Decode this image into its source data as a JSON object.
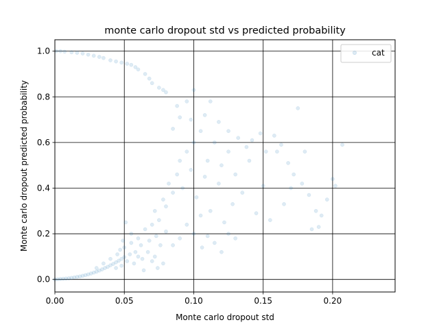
{
  "chart_data": {
    "type": "scatter",
    "title": "monte carlo dropout std vs predicted probability",
    "xlabel": "Monte carlo dropout std",
    "ylabel": "Monte carlo dropout predicted probability",
    "xlim": [
      0.0,
      0.245
    ],
    "ylim": [
      -0.055,
      1.05
    ],
    "xticks": [
      0.0,
      0.05,
      0.1,
      0.15,
      0.2
    ],
    "xtick_labels": [
      "0.00",
      "0.05",
      "0.10",
      "0.15",
      "0.20"
    ],
    "yticks": [
      0.0,
      0.2,
      0.4,
      0.6,
      0.8,
      1.0
    ],
    "ytick_labels": [
      "0.0",
      "0.2",
      "0.4",
      "0.6",
      "0.8",
      "1.0"
    ],
    "grid": true,
    "legend_position": "top-right",
    "series": [
      {
        "name": "cat",
        "color": "#1f77b4",
        "marker_alpha": 0.15,
        "points": [
          [
            0.0,
            0.0
          ],
          [
            0.002,
            0.001
          ],
          [
            0.004,
            0.002
          ],
          [
            0.006,
            0.003
          ],
          [
            0.008,
            0.004
          ],
          [
            0.01,
            0.005
          ],
          [
            0.012,
            0.007
          ],
          [
            0.014,
            0.009
          ],
          [
            0.016,
            0.011
          ],
          [
            0.018,
            0.013
          ],
          [
            0.02,
            0.016
          ],
          [
            0.022,
            0.019
          ],
          [
            0.024,
            0.022
          ],
          [
            0.026,
            0.026
          ],
          [
            0.028,
            0.03
          ],
          [
            0.03,
            0.034
          ],
          [
            0.032,
            0.039
          ],
          [
            0.034,
            0.044
          ],
          [
            0.036,
            0.05
          ],
          [
            0.038,
            0.055
          ],
          [
            0.04,
            0.062
          ],
          [
            0.042,
            0.068
          ],
          [
            0.044,
            0.075
          ],
          [
            0.046,
            0.082
          ],
          [
            0.048,
            0.09
          ],
          [
            0.05,
            0.098
          ],
          [
            0.03,
            0.05
          ],
          [
            0.035,
            0.07
          ],
          [
            0.04,
            0.09
          ],
          [
            0.045,
            0.11
          ],
          [
            0.05,
            0.14
          ],
          [
            0.055,
            0.16
          ],
          [
            0.06,
            0.18
          ],
          [
            0.048,
            0.06
          ],
          [
            0.052,
            0.08
          ],
          [
            0.044,
            0.05
          ],
          [
            0.047,
            0.13
          ],
          [
            0.049,
            0.17
          ],
          [
            0.051,
            0.25
          ],
          [
            0.055,
            0.2
          ],
          [
            0.058,
            0.12
          ],
          [
            0.062,
            0.15
          ],
          [
            0.065,
            0.22
          ],
          [
            0.068,
            0.17
          ],
          [
            0.07,
            0.24
          ],
          [
            0.072,
            0.3
          ],
          [
            0.075,
            0.26
          ],
          [
            0.078,
            0.35
          ],
          [
            0.08,
            0.32
          ],
          [
            0.082,
            0.42
          ],
          [
            0.085,
            0.38
          ],
          [
            0.088,
            0.46
          ],
          [
            0.09,
            0.52
          ],
          [
            0.092,
            0.4
          ],
          [
            0.095,
            0.56
          ],
          [
            0.098,
            0.48
          ],
          [
            0.1,
            0.6
          ],
          [
            0.102,
            0.36
          ],
          [
            0.105,
            0.65
          ],
          [
            0.108,
            0.45
          ],
          [
            0.11,
            0.52
          ],
          [
            0.112,
            0.3
          ],
          [
            0.115,
            0.6
          ],
          [
            0.118,
            0.42
          ],
          [
            0.12,
            0.5
          ],
          [
            0.122,
            0.25
          ],
          [
            0.125,
            0.56
          ],
          [
            0.128,
            0.33
          ],
          [
            0.13,
            0.46
          ],
          [
            0.135,
            0.38
          ],
          [
            0.14,
            0.52
          ],
          [
            0.145,
            0.29
          ],
          [
            0.15,
            0.41
          ],
          [
            0.155,
            0.26
          ],
          [
            0.16,
            0.56
          ],
          [
            0.165,
            0.33
          ],
          [
            0.17,
            0.4
          ],
          [
            0.175,
            0.75
          ],
          [
            0.18,
            0.56
          ],
          [
            0.185,
            0.22
          ],
          [
            0.19,
            0.23
          ],
          [
            0.2,
            0.44
          ],
          [
            0.207,
            0.59
          ],
          [
            0.1,
            0.2
          ],
          [
            0.095,
            0.24
          ],
          [
            0.105,
            0.28
          ],
          [
            0.09,
            0.18
          ],
          [
            0.085,
            0.15
          ],
          [
            0.08,
            0.21
          ],
          [
            0.076,
            0.15
          ],
          [
            0.073,
            0.19
          ],
          [
            0.067,
            0.12
          ],
          [
            0.063,
            0.09
          ],
          [
            0.06,
            0.1
          ],
          [
            0.057,
            0.07
          ],
          [
            0.054,
            0.11
          ],
          [
            0.1,
            0.83
          ],
          [
            0.095,
            0.78
          ],
          [
            0.09,
            0.71
          ],
          [
            0.085,
            0.66
          ],
          [
            0.08,
            0.82
          ],
          [
            0.075,
            0.84
          ],
          [
            0.07,
            0.86
          ],
          [
            0.065,
            0.9
          ],
          [
            0.06,
            0.92
          ],
          [
            0.055,
            0.94
          ],
          [
            0.048,
            0.95
          ],
          [
            0.04,
            0.96
          ],
          [
            0.035,
            0.97
          ],
          [
            0.028,
            0.98
          ],
          [
            0.02,
            0.99
          ],
          [
            0.012,
            0.995
          ],
          [
            0.004,
            1.0
          ],
          [
            0.001,
            1.0
          ],
          [
            0.007,
            0.998
          ],
          [
            0.016,
            0.993
          ],
          [
            0.024,
            0.985
          ],
          [
            0.032,
            0.975
          ],
          [
            0.044,
            0.955
          ],
          [
            0.052,
            0.945
          ],
          [
            0.058,
            0.93
          ],
          [
            0.068,
            0.88
          ],
          [
            0.078,
            0.83
          ],
          [
            0.088,
            0.76
          ],
          [
            0.098,
            0.7
          ],
          [
            0.108,
            0.72
          ],
          [
            0.112,
            0.78
          ],
          [
            0.118,
            0.69
          ],
          [
            0.125,
            0.65
          ],
          [
            0.132,
            0.62
          ],
          [
            0.138,
            0.58
          ],
          [
            0.142,
            0.61
          ],
          [
            0.148,
            0.64
          ],
          [
            0.152,
            0.56
          ],
          [
            0.158,
            0.63
          ],
          [
            0.163,
            0.59
          ],
          [
            0.168,
            0.51
          ],
          [
            0.172,
            0.46
          ],
          [
            0.178,
            0.42
          ],
          [
            0.183,
            0.37
          ],
          [
            0.188,
            0.3
          ],
          [
            0.192,
            0.28
          ],
          [
            0.196,
            0.35
          ],
          [
            0.202,
            0.41
          ],
          [
            0.115,
            0.16
          ],
          [
            0.12,
            0.12
          ],
          [
            0.125,
            0.2
          ],
          [
            0.13,
            0.18
          ],
          [
            0.11,
            0.19
          ],
          [
            0.106,
            0.14
          ],
          [
            0.074,
            0.05
          ],
          [
            0.064,
            0.04
          ],
          [
            0.078,
            0.07
          ],
          [
            0.07,
            0.08
          ],
          [
            0.072,
            0.1
          ]
        ]
      }
    ]
  }
}
